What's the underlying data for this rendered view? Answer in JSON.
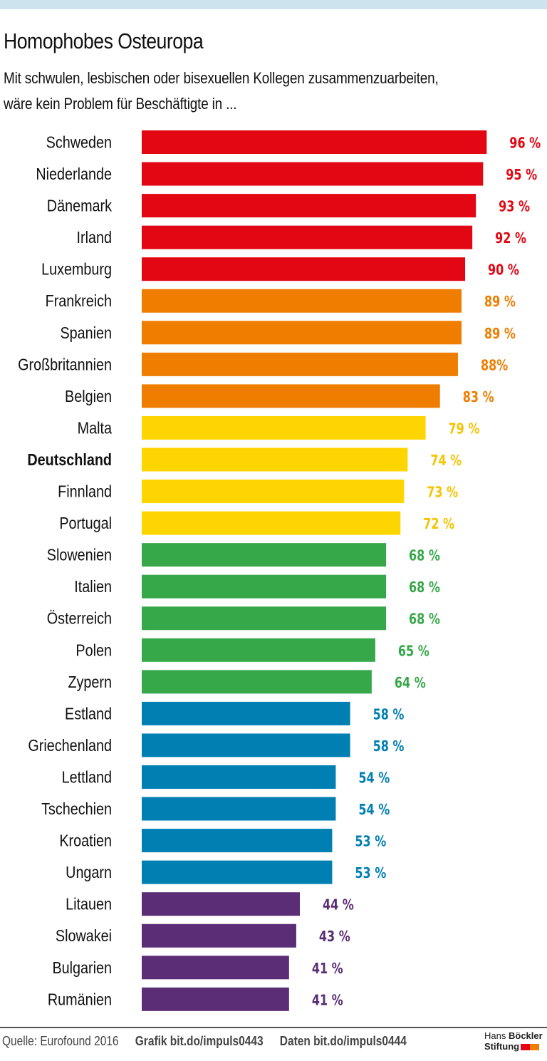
{
  "header": {
    "title": "Homophobes Osteuropa",
    "subtitle_line1": "Mit schwulen, lesbischen oder bisexuellen Kollegen zusammenzuarbeiten,",
    "subtitle_line2": "wäre kein Problem für Beschäftigte in ..."
  },
  "chart_data": {
    "type": "bar",
    "orientation": "horizontal",
    "title": "Homophobes Osteuropa",
    "subtitle": "Mit schwulen, lesbischen oder bisexuellen Kollegen zusammenzuarbeiten, wäre kein Problem für Beschäftigte in ...",
    "xlabel": "",
    "ylabel": "",
    "xlim": [
      0,
      100
    ],
    "unit": "%",
    "grid": false,
    "highlight": "Deutschland",
    "categories": [
      "Schweden",
      "Niederlande",
      "Dänemark",
      "Irland",
      "Luxemburg",
      "Frankreich",
      "Spanien",
      "Großbritannien",
      "Belgien",
      "Malta",
      "Deutschland",
      "Finnland",
      "Portugal",
      "Slowenien",
      "Italien",
      "Österreich",
      "Polen",
      "Zypern",
      "Estland",
      "Griechenland",
      "Lettland",
      "Tschechien",
      "Kroatien",
      "Ungarn",
      "Litauen",
      "Slowakei",
      "Bulgarien",
      "Rumänien"
    ],
    "values": [
      96,
      95,
      93,
      92,
      90,
      89,
      89,
      88,
      83,
      79,
      74,
      73,
      72,
      68,
      68,
      68,
      65,
      64,
      58,
      58,
      54,
      54,
      53,
      53,
      44,
      43,
      41,
      41
    ],
    "labels": [
      "96 %",
      "95 %",
      "93 %",
      "92 %",
      "90 %",
      "89 %",
      "89 %",
      "88%",
      "83 %",
      "79 %",
      "74 %",
      "73 %",
      "72 %",
      "68 %",
      "68 %",
      "68 %",
      "65 %",
      "64 %",
      "58 %",
      "58 %",
      "54 %",
      "54 %",
      "53 %",
      "53 %",
      "44 %",
      "43 %",
      "41 %",
      "41 %"
    ],
    "color_groups": [
      "red",
      "red",
      "red",
      "red",
      "red",
      "orange",
      "orange",
      "orange",
      "orange",
      "yellow",
      "yellow",
      "yellow",
      "yellow",
      "green",
      "green",
      "green",
      "green",
      "green",
      "blue",
      "blue",
      "blue",
      "blue",
      "blue",
      "blue",
      "purple",
      "purple",
      "purple",
      "purple"
    ]
  },
  "colors": {
    "red": "#e30613",
    "orange": "#ef7d00",
    "yellow": "#ffd500",
    "yellow_label": "#f5c400",
    "green": "#37a84a",
    "blue": "#0080b2",
    "purple": "#5b2d76",
    "topbar": "#cde4ee",
    "logo_red": "#e30613",
    "logo_orange": "#ef7d00"
  },
  "footer": {
    "source": "Quelle: Eurofound 2016",
    "grafik": "Grafik bit.do/impuls0443",
    "daten": "Daten bit.do/impuls0444",
    "logo_line1_light": "Hans",
    "logo_line1_bold": "Böckler",
    "logo_line2": "Stiftung"
  }
}
